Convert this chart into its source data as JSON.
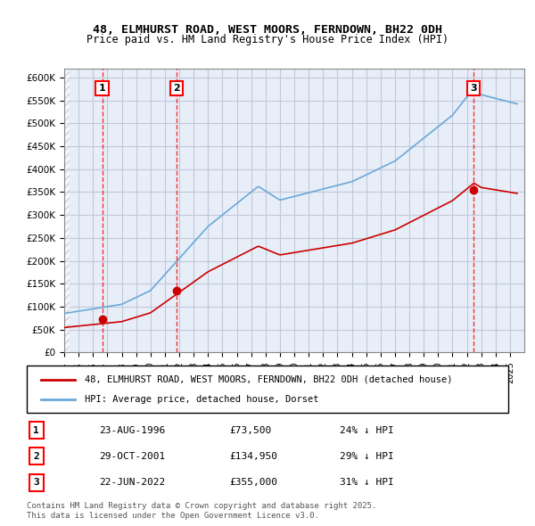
{
  "title": "48, ELMHURST ROAD, WEST MOORS, FERNDOWN, BH22 0DH",
  "subtitle": "Price paid vs. HM Land Registry's House Price Index (HPI)",
  "ylabel": "",
  "ylim": [
    0,
    620000
  ],
  "yticks": [
    0,
    50000,
    100000,
    150000,
    200000,
    250000,
    300000,
    350000,
    400000,
    450000,
    500000,
    550000,
    600000
  ],
  "xlim_start": 1994.0,
  "xlim_end": 2026.0,
  "hpi_color": "#6aa8d8",
  "price_color": "#cc0000",
  "purchase_dates": [
    1996.645,
    2001.831,
    2022.472
  ],
  "purchase_prices": [
    73500,
    134950,
    355000
  ],
  "purchase_labels": [
    "1",
    "2",
    "3"
  ],
  "legend_label_red": "48, ELMHURST ROAD, WEST MOORS, FERNDOWN, BH22 0DH (detached house)",
  "legend_label_blue": "HPI: Average price, detached house, Dorset",
  "table_data": [
    [
      "1",
      "23-AUG-1996",
      "£73,500",
      "24% ↓ HPI"
    ],
    [
      "2",
      "29-OCT-2001",
      "£134,950",
      "29% ↓ HPI"
    ],
    [
      "3",
      "22-JUN-2022",
      "£355,000",
      "31% ↓ HPI"
    ]
  ],
  "footer": "Contains HM Land Registry data © Crown copyright and database right 2025.\nThis data is licensed under the Open Government Licence v3.0.",
  "bg_hatch_color": "#d0d0d0",
  "grid_color": "#c0c8d8",
  "plot_bg_color": "#e8eef8"
}
